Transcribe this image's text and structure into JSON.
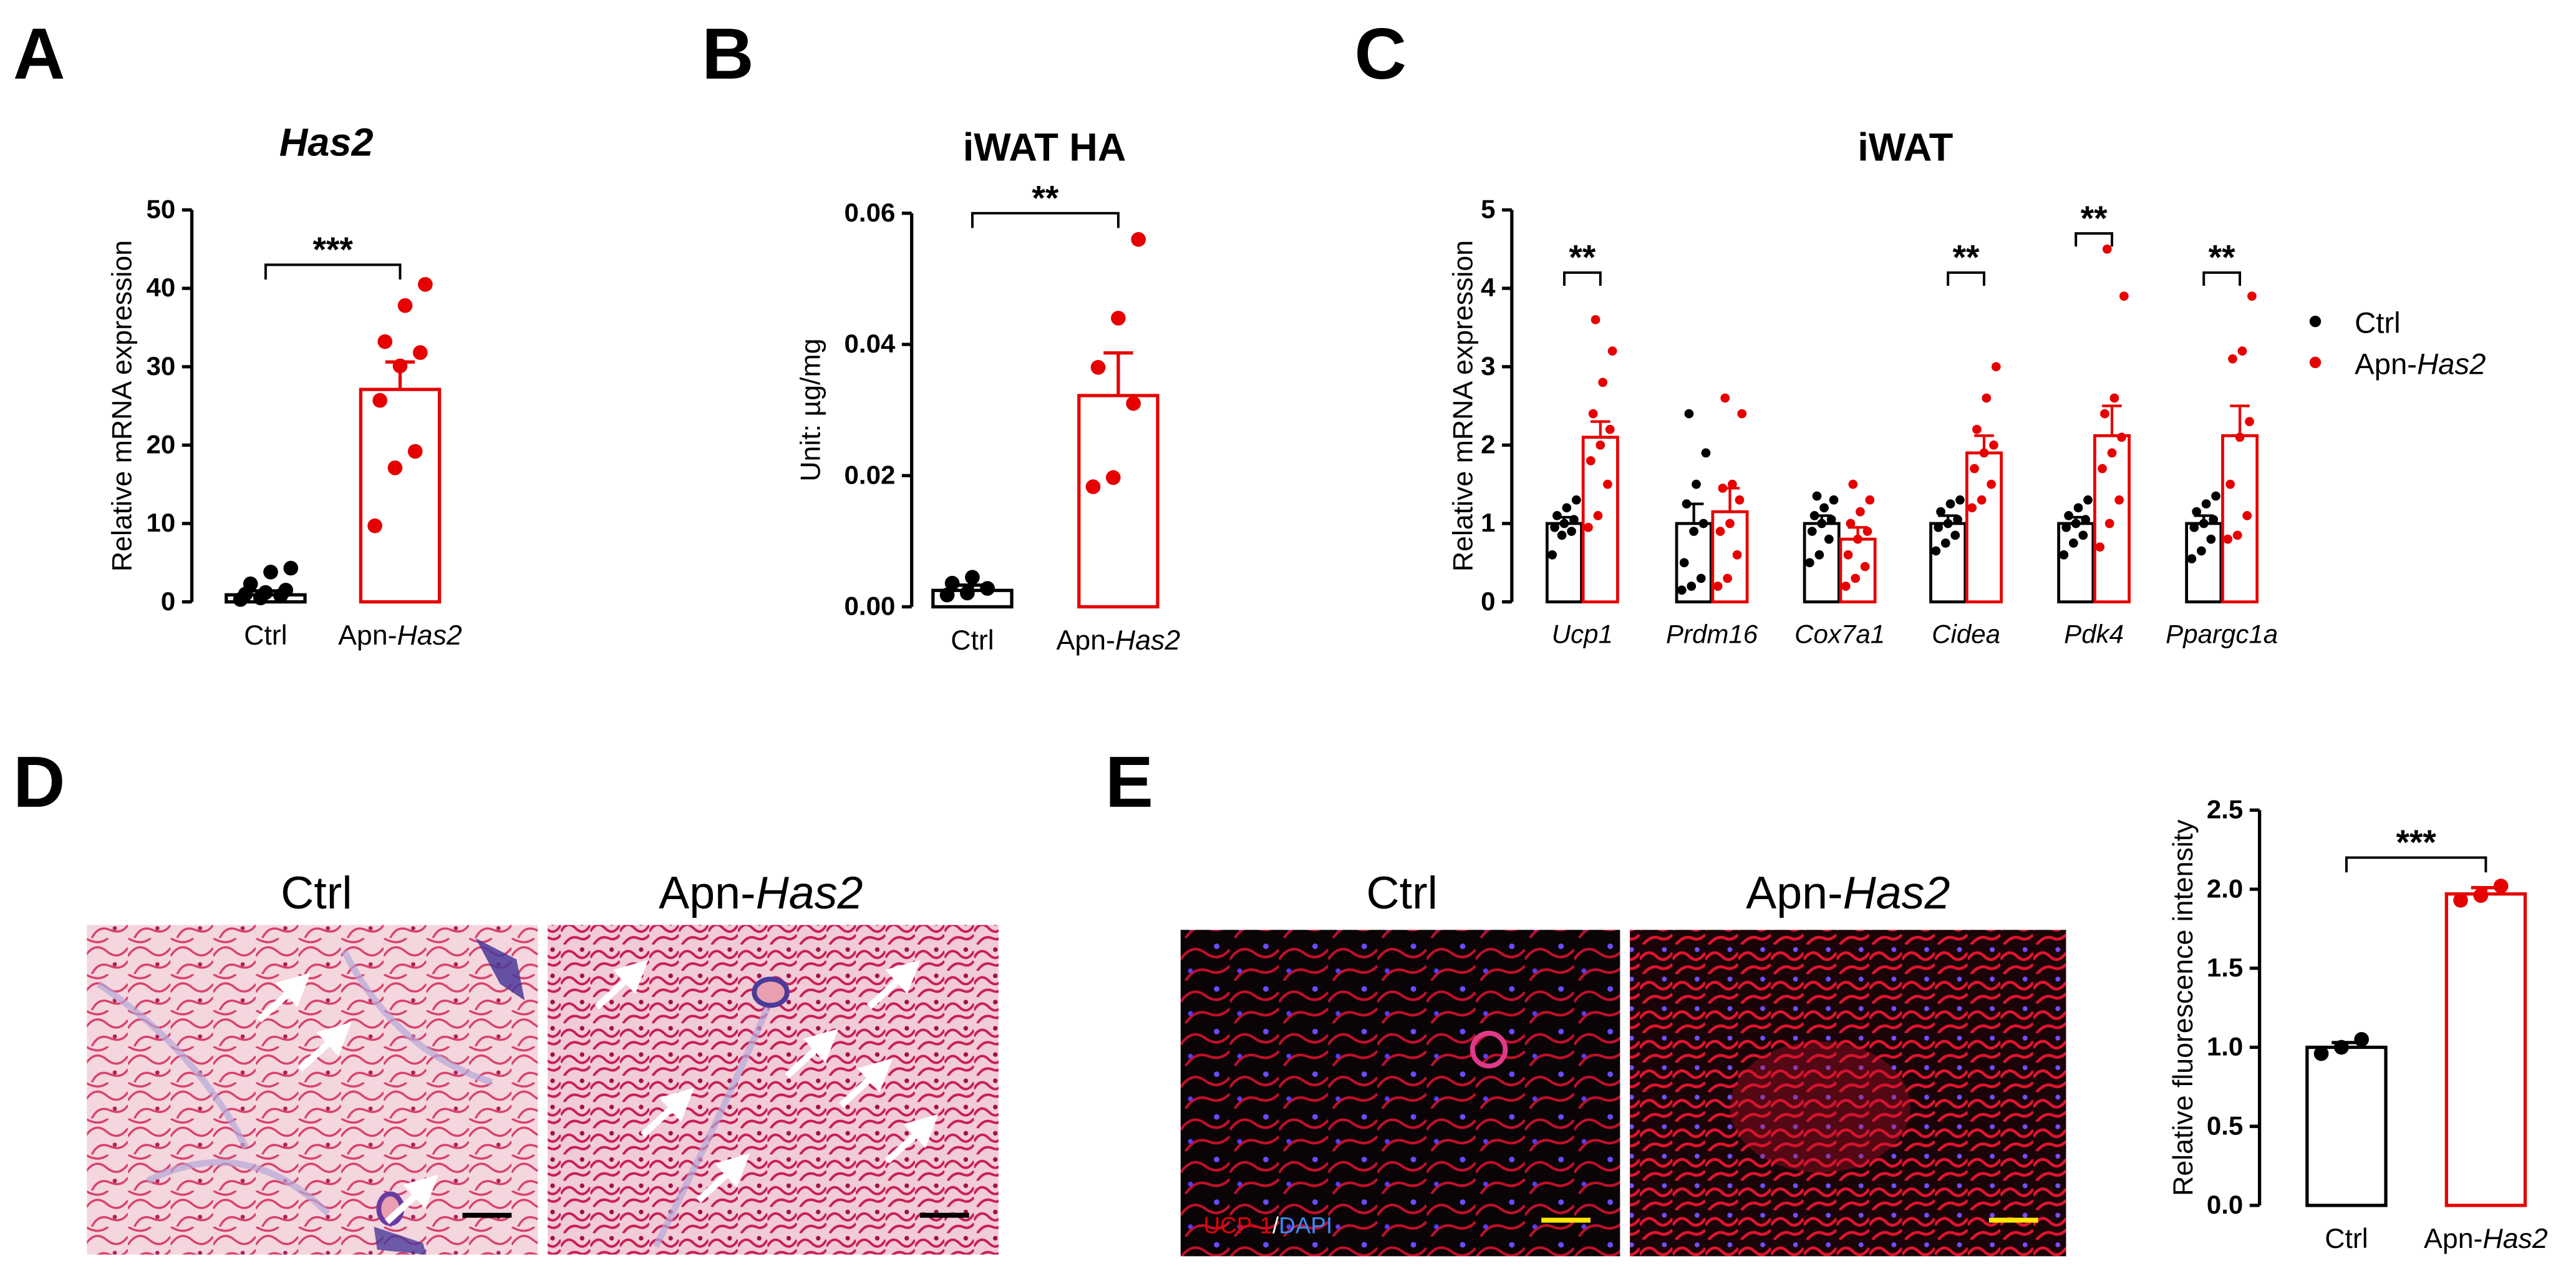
{
  "panels": {
    "A": "A",
    "B": "B",
    "C": "C",
    "D": "D",
    "E": "E"
  },
  "colors": {
    "ctrl": "#000000",
    "treat": "#e60000",
    "scale_black": "#000000",
    "scale_yellow": "#ffe600"
  },
  "chart_data": [
    {
      "id": "A",
      "type": "bar",
      "title": "Has2",
      "ylabel": "Relative mRNA expression",
      "xlabel": "",
      "ylim": [
        0,
        50
      ],
      "yticks": [
        "0",
        "10",
        "20",
        "30",
        "40",
        "50"
      ],
      "categories": [
        {
          "pre": "Ctrl",
          "it": ""
        },
        {
          "pre": "Apn-",
          "it": "Has2"
        }
      ],
      "values": [
        0.9,
        27.1
      ],
      "errors": [
        0.5,
        3.5
      ],
      "points": [
        [
          0.3,
          0.5,
          0.8,
          1.0,
          1.2,
          1.5,
          2.3,
          3.8,
          4.3
        ],
        [
          9.7,
          17.1,
          19.2,
          25.7,
          30.1,
          31.8,
          33.2,
          37.8,
          40.5
        ]
      ],
      "significance": [
        {
          "from": 0,
          "to": 1,
          "label": "***",
          "y": 43.0
        }
      ]
    },
    {
      "id": "B",
      "type": "bar",
      "title": "iWAT HA",
      "ylabel": "Unit: µg/mg",
      "xlabel": "",
      "ylim": [
        0,
        0.06
      ],
      "yticks": [
        "0.00",
        "0.02",
        "0.04",
        "0.06"
      ],
      "categories": [
        {
          "pre": "Ctrl",
          "it": ""
        },
        {
          "pre": "Apn-",
          "it": "Has2"
        }
      ],
      "values": [
        0.0025,
        0.0322
      ],
      "errors": [
        0.0008,
        0.0065
      ],
      "points": [
        [
          0.0018,
          0.0021,
          0.0028,
          0.0036,
          0.0045
        ],
        [
          0.0183,
          0.0197,
          0.031,
          0.0365,
          0.044,
          0.056
        ]
      ],
      "significance": [
        {
          "from": 0,
          "to": 1,
          "label": "**",
          "y": 0.06
        }
      ]
    },
    {
      "id": "C",
      "type": "bar",
      "title": "iWAT",
      "ylabel": "Relative mRNA expression",
      "xlabel": "",
      "ylim": [
        0,
        5
      ],
      "yticks": [
        "0",
        "1",
        "2",
        "3",
        "4",
        "5"
      ],
      "categories": [
        "Ucp1",
        "Prdm16",
        "Cox7a1",
        "Cidea",
        "Pdk4",
        "Ppargc1a"
      ],
      "legend": {
        "ctrl": "Ctrl",
        "treat_pre": "Apn-",
        "treat_it": "Has2",
        "position": "right"
      },
      "series": [
        {
          "name": "Ctrl",
          "values": [
            1.0,
            1.0,
            1.0,
            1.0,
            1.0,
            1.0
          ],
          "errors": [
            0.08,
            0.25,
            0.1,
            0.1,
            0.08,
            0.1
          ],
          "points": [
            [
              0.6,
              0.85,
              0.9,
              0.95,
              1.0,
              1.05,
              1.1,
              1.2,
              1.3
            ],
            [
              0.15,
              0.2,
              0.3,
              0.5,
              0.9,
              1.0,
              1.25,
              1.5,
              1.9,
              2.4
            ],
            [
              0.5,
              0.6,
              0.8,
              0.9,
              1.0,
              1.05,
              1.1,
              1.2,
              1.3,
              1.35
            ],
            [
              0.65,
              0.75,
              0.85,
              0.95,
              1.0,
              1.05,
              1.15,
              1.25,
              1.3
            ],
            [
              0.6,
              0.75,
              0.85,
              0.95,
              1.0,
              1.05,
              1.1,
              1.2,
              1.3
            ],
            [
              0.55,
              0.65,
              0.8,
              0.95,
              1.0,
              1.05,
              1.15,
              1.25,
              1.35
            ]
          ]
        },
        {
          "name": "Apn-Has2",
          "values": [
            2.1,
            1.15,
            0.8,
            1.9,
            2.12,
            2.12
          ],
          "errors": [
            0.2,
            0.3,
            0.15,
            0.22,
            0.38,
            0.38
          ],
          "points": [
            [
              0.95,
              1.1,
              1.5,
              1.8,
              2.0,
              2.2,
              2.4,
              2.8,
              3.2,
              3.6
            ],
            [
              0.2,
              0.3,
              0.6,
              0.9,
              1.0,
              1.3,
              1.45,
              1.5,
              2.4,
              2.6
            ],
            [
              0.2,
              0.3,
              0.45,
              0.6,
              0.8,
              0.9,
              1.0,
              1.15,
              1.3,
              1.5
            ],
            [
              1.2,
              1.3,
              1.5,
              1.7,
              1.9,
              2.0,
              2.2,
              2.6,
              3.0
            ],
            [
              0.7,
              1.0,
              1.3,
              1.7,
              1.9,
              2.1,
              2.4,
              2.6,
              3.9,
              4.5
            ],
            [
              0.8,
              0.85,
              1.1,
              1.5,
              2.1,
              2.3,
              3.1,
              3.2,
              3.9
            ]
          ]
        }
      ],
      "significance": [
        {
          "group": 0,
          "label": "**",
          "y": 4.2
        },
        {
          "group": 3,
          "label": "**",
          "y": 4.2
        },
        {
          "group": 4,
          "label": "**",
          "y": 4.7
        },
        {
          "group": 5,
          "label": "**",
          "y": 4.2
        }
      ]
    },
    {
      "id": "E",
      "type": "bar",
      "title": "",
      "ylabel": "Relative fluorescence intensity",
      "xlabel": "",
      "ylim": [
        0,
        2.5
      ],
      "yticks": [
        "0.0",
        "0.5",
        "1.0",
        "1.5",
        "2.0",
        "2.5"
      ],
      "categories": [
        {
          "pre": "Ctrl",
          "it": ""
        },
        {
          "pre": "Apn-",
          "it": "Has2"
        }
      ],
      "values": [
        1.0,
        1.97
      ],
      "errors": [
        0.03,
        0.04
      ],
      "points": [
        [
          0.96,
          1.0,
          1.05
        ],
        [
          1.93,
          1.96,
          2.02
        ]
      ],
      "significance": [
        {
          "from": 0,
          "to": 1,
          "label": "***",
          "y": 2.2
        }
      ]
    }
  ],
  "micrographs": {
    "D": {
      "left_title": "Ctrl",
      "right_title_pre": "Apn-",
      "right_title_it": "Has2"
    },
    "E": {
      "left_title": "Ctrl",
      "right_title_pre": "Apn-",
      "right_title_it": "Has2",
      "stain_label_a": "UCP-1",
      "stain_sep": "/",
      "stain_label_b": "DAPI"
    }
  }
}
